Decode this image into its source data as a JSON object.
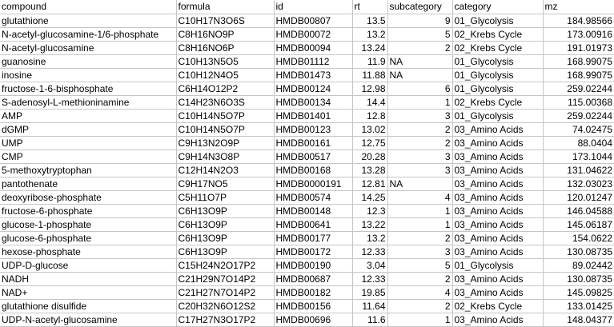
{
  "columns": [
    "compound",
    "formula",
    "id",
    "rt",
    "subcategory",
    "category",
    "mz"
  ],
  "rows": [
    [
      "glutathione",
      "C10H17N3O6S",
      "HMDB00807",
      "13.5",
      "9",
      "01_Glycolysis",
      "184.98566"
    ],
    [
      "N-acetyl-glucosamine-1/6-phosphate",
      "C8H16NO9P",
      "HMDB00072",
      "13.2",
      "5",
      "02_Krebs Cycle",
      "173.00916"
    ],
    [
      "N-acetyl-glucosamine",
      "C8H16NO6P",
      "HMDB00094",
      "13.24",
      "2",
      "02_Krebs Cycle",
      "191.01973"
    ],
    [
      "guanosine",
      "C10H13N5O5",
      "HMDB01112",
      "11.9",
      "NA",
      "01_Glycolysis",
      "168.99075"
    ],
    [
      "inosine",
      "C10H12N4O5",
      "HMDB01473",
      "11.88",
      "NA",
      "01_Glycolysis",
      "168.99075"
    ],
    [
      "fructose-1-6-bisphosphate",
      "C6H14O12P2",
      "HMDB00124",
      "12.98",
      "6",
      "01_Glycolysis",
      "259.02244"
    ],
    [
      "S-adenosyl-L-methioninamine",
      "C14H23N6O3S",
      "HMDB00134",
      "14.4",
      "1",
      "02_Krebs Cycle",
      "115.00368"
    ],
    [
      "AMP",
      "C10H14N5O7P",
      "HMDB01401",
      "12.8",
      "3",
      "01_Glycolysis",
      "259.02244"
    ],
    [
      "dGMP",
      "C10H14N5O7P",
      "HMDB00123",
      "13.02",
      "2",
      "03_Amino Acids",
      "74.02475"
    ],
    [
      "UMP",
      "C9H13N2O9P",
      "HMDB00161",
      "12.75",
      "2",
      "03_Amino Acids",
      "88.0404"
    ],
    [
      "CMP",
      "C9H14N3O8P",
      "HMDB00517",
      "20.28",
      "3",
      "03_Amino Acids",
      "173.1044"
    ],
    [
      "5-methoxytryptophan",
      "C12H14N2O3",
      "HMDB00168",
      "13.28",
      "3",
      "03_Amino Acids",
      "131.04622"
    ],
    [
      "pantothenate",
      "C9H17NO5",
      "HMDB0000191",
      "12.81",
      "NA",
      "03_Amino Acids",
      "132.03023"
    ],
    [
      "deoxyribose-phosphate",
      "C5H11O7P",
      "HMDB00574",
      "14.25",
      "4",
      "03_Amino Acids",
      "120.01247"
    ],
    [
      "fructose-6-phosphate",
      "C6H13O9P",
      "HMDB00148",
      "12.3",
      "1",
      "03_Amino Acids",
      "146.04588"
    ],
    [
      "glucose-1-phosphate",
      "C6H13O9P",
      "HMDB00641",
      "13.22",
      "1",
      "03_Amino Acids",
      "145.06187"
    ],
    [
      "glucose-6-phosphate",
      "C6H13O9P",
      "HMDB00177",
      "13.2",
      "2",
      "03_Amino Acids",
      "154.0622"
    ],
    [
      "hexose-phosphate",
      "C6H13O9P",
      "HMDB00172",
      "12.33",
      "3",
      "03_Amino Acids",
      "130.08735"
    ],
    [
      "UDP-D-glucose",
      "C15H24N2O17P2",
      "HMDB00190",
      "3.04",
      "5",
      "01_Glycolysis",
      "89.02442"
    ],
    [
      "NADH",
      "C21H29N7O14P2",
      "HMDB00687",
      "12.33",
      "2",
      "03_Amino Acids",
      "130.08735"
    ],
    [
      "NAD+",
      "C21H27N7O14P2",
      "HMDB00182",
      "19.85",
      "4",
      "03_Amino Acids",
      "145.09825"
    ],
    [
      "glutathione disulfide",
      "C20H32N6O12S2",
      "HMDB00156",
      "11.64",
      "2",
      "02_Krebs Cycle",
      "133.01425"
    ],
    [
      "UDP-N-acetyl-glucosamine",
      "C17H27N3O17P2",
      "HMDB00696",
      "11.6",
      "1",
      "03_Amino Acids",
      "148.04377"
    ]
  ]
}
